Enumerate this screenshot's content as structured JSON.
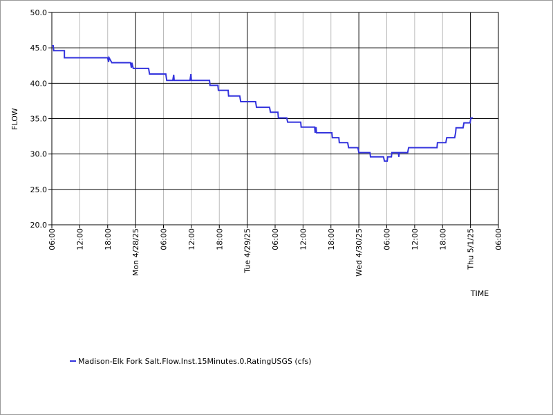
{
  "chart_data": {
    "type": "line",
    "x_label": "TIME",
    "y_label": "FLOW",
    "xlim": [
      0,
      96
    ],
    "xticks": [
      {
        "value": 0,
        "label": "06:00"
      },
      {
        "value": 6,
        "label": "12:00"
      },
      {
        "value": 12,
        "label": "18:00"
      },
      {
        "value": 18,
        "label": "Mon 4/28/25"
      },
      {
        "value": 24,
        "label": "06:00"
      },
      {
        "value": 30,
        "label": "12:00"
      },
      {
        "value": 36,
        "label": "18:00"
      },
      {
        "value": 42,
        "label": "Tue 4/29/25"
      },
      {
        "value": 48,
        "label": "06:00"
      },
      {
        "value": 54,
        "label": "12:00"
      },
      {
        "value": 60,
        "label": "18:00"
      },
      {
        "value": 66,
        "label": "Wed 4/30/25"
      },
      {
        "value": 72,
        "label": "06:00"
      },
      {
        "value": 78,
        "label": "12:00"
      },
      {
        "value": 84,
        "label": "18:00"
      },
      {
        "value": 90,
        "label": "Thu 5/1/25"
      },
      {
        "value": 96,
        "label": "06:00"
      }
    ],
    "ylim": [
      20,
      50
    ],
    "yticks": [
      {
        "value": 20,
        "label": "20.0"
      },
      {
        "value": 25,
        "label": "25.0"
      },
      {
        "value": 30,
        "label": "30.0"
      },
      {
        "value": 35,
        "label": "35.0"
      },
      {
        "value": 40,
        "label": "40.0"
      },
      {
        "value": 45,
        "label": "45.0"
      },
      {
        "value": 50,
        "label": "50.0"
      }
    ],
    "grid": true,
    "legend": "bottom",
    "series": [
      {
        "name": "Madison-Elk Fork Salt.Flow.Inst.15Minutes.0.RatingUSGS (cfs)",
        "color": "#3333dd",
        "x": [
          0,
          0.3,
          0.4,
          2.7,
          2.7,
          12.0,
          12.2,
          12.3,
          12.9,
          16.9,
          17.1,
          17.2,
          17.5,
          20.8,
          21.0,
          24.5,
          24.7,
          26.0,
          26.2,
          26.3,
          29.7,
          29.9,
          30.0,
          33.9,
          34.0,
          35.7,
          35.8,
          37.9,
          38.0,
          40.4,
          40.6,
          43.8,
          44.0,
          46.8,
          47.0,
          48.6,
          48.7,
          50.5,
          50.7,
          53.5,
          53.6,
          56.5,
          56.6,
          56.8,
          56.9,
          60.2,
          60.3,
          61.7,
          61.8,
          63.6,
          63.8,
          65.8,
          66.0,
          68.4,
          68.5,
          71.3,
          71.5,
          72.1,
          72.2,
          73.0,
          73.1,
          74.5,
          74.6,
          74.7,
          76.5,
          76.7,
          82.8,
          82.9,
          84.7,
          84.9,
          86.6,
          86.8,
          86.9,
          88.4,
          88.6,
          89.9,
          90.1,
          90.5
        ],
        "values": [
          45.3,
          45.3,
          44.6,
          44.6,
          43.6,
          43.6,
          43.0,
          43.6,
          42.9,
          42.9,
          42.2,
          42.9,
          42.1,
          42.1,
          41.3,
          41.3,
          40.4,
          40.4,
          41.2,
          40.4,
          40.4,
          41.3,
          40.4,
          40.4,
          39.7,
          39.7,
          39.0,
          39.0,
          38.2,
          38.2,
          37.4,
          37.4,
          36.6,
          36.6,
          35.9,
          35.9,
          35.1,
          35.1,
          34.5,
          34.5,
          33.8,
          33.8,
          33.0,
          33.8,
          33.0,
          33.0,
          32.3,
          32.3,
          31.6,
          31.6,
          30.9,
          30.9,
          30.2,
          30.2,
          29.6,
          29.6,
          29.0,
          29.0,
          29.6,
          29.6,
          30.2,
          30.2,
          29.6,
          30.2,
          30.2,
          30.9,
          30.9,
          31.6,
          31.6,
          32.3,
          32.3,
          33.0,
          33.7,
          33.7,
          34.4,
          34.4,
          35.1,
          35.1
        ]
      }
    ]
  }
}
